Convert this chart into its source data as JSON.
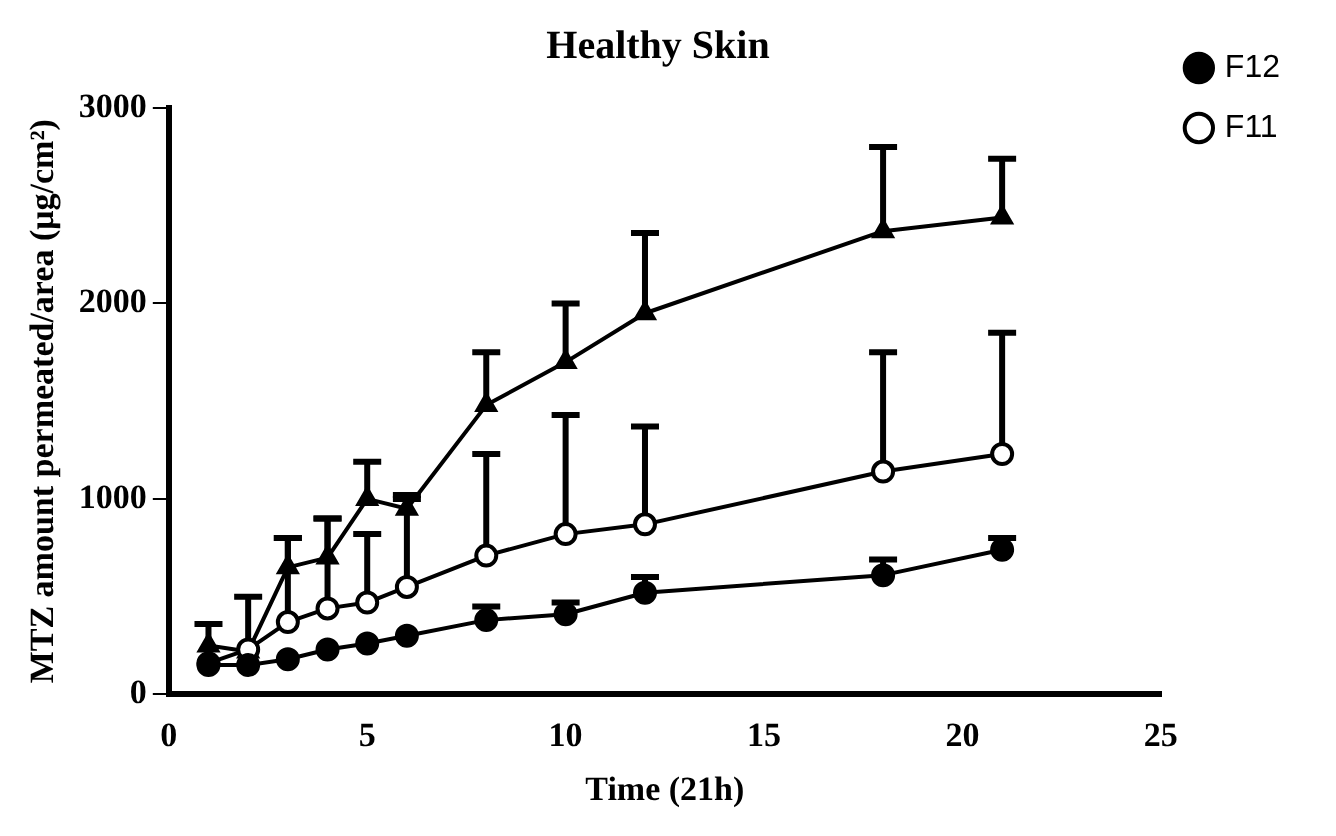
{
  "chart_data": {
    "type": "line",
    "title": "Healthy Skin",
    "xlabel": "Time (21h)",
    "ylabel": "MTZ amount permeated/area (μg/cm²)",
    "x": [
      1,
      2,
      3,
      4,
      5,
      6,
      8,
      10,
      12,
      18,
      21
    ],
    "xlim": [
      0,
      25
    ],
    "xticks": [
      0,
      5,
      10,
      15,
      20,
      25
    ],
    "ylim": [
      0,
      3000
    ],
    "yticks": [
      0,
      1000,
      2000,
      3000
    ],
    "grid": false,
    "legend": "top right",
    "line_style": "solid",
    "series": [
      {
        "name": "F12",
        "color": "#000000",
        "marker": "circle",
        "values": [
          150,
          150,
          180,
          230,
          260,
          300,
          380,
          410,
          520,
          610,
          740
        ],
        "errors": [
          null,
          null,
          null,
          null,
          null,
          null,
          [
            380,
            450
          ],
          [
            410,
            470
          ],
          [
            520,
            600
          ],
          [
            610,
            690
          ],
          [
            740,
            800
          ]
        ]
      },
      {
        "name": "F11",
        "color": "#000000",
        "marker": "circle-open",
        "values": [
          160,
          230,
          370,
          440,
          470,
          550,
          710,
          820,
          870,
          1140,
          1230
        ],
        "errors": [
          null,
          null,
          [
            370,
            800
          ],
          [
            440,
            900
          ],
          [
            470,
            820
          ],
          [
            550,
            1000
          ],
          [
            710,
            1230
          ],
          [
            820,
            1430
          ],
          [
            870,
            1370
          ],
          [
            1140,
            1750
          ],
          [
            1230,
            1850
          ]
        ]
      },
      {
        "color": "#000000",
        "marker": "triangle",
        "values": [
          250,
          220,
          650,
          700,
          1000,
          950,
          1480,
          1700,
          1950,
          2370,
          2440
        ],
        "errors": [
          [
            250,
            360
          ],
          [
            220,
            500
          ],
          [
            650,
            800
          ],
          [
            700,
            900
          ],
          [
            1000,
            1190
          ],
          [
            950,
            1020
          ],
          [
            1480,
            1750
          ],
          [
            1700,
            2000
          ],
          [
            1950,
            2360
          ],
          [
            2370,
            2800
          ],
          [
            2440,
            2740
          ]
        ]
      }
    ]
  }
}
